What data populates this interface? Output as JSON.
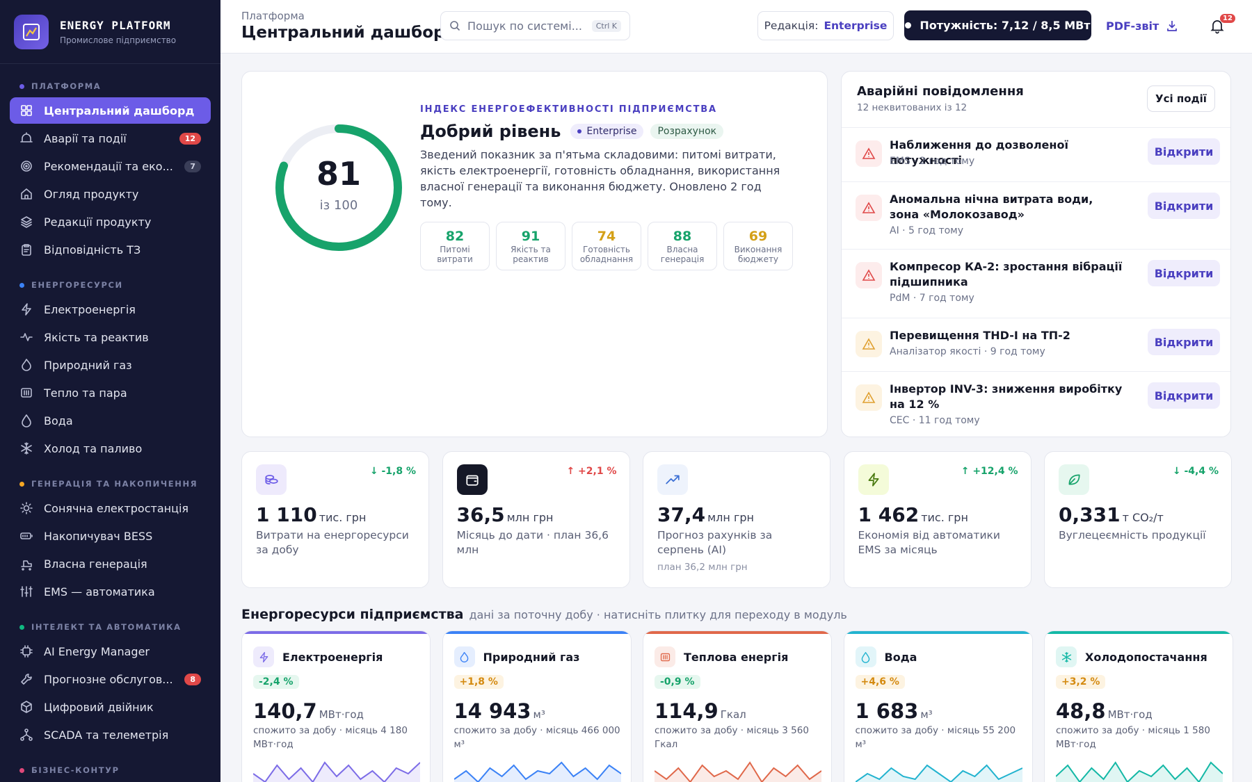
{
  "brand": {
    "name": "ENERGY PLATFORM",
    "subtitle": "Промислове підприємство"
  },
  "sidebar": [
    {
      "section": "ПЛАТФОРМА",
      "color": "#6c5ce7",
      "items": [
        {
          "label": "Центральний дашборд",
          "icon": "grid-icon",
          "active": true
        },
        {
          "label": "Аварії та події",
          "icon": "alert-icon",
          "badge": "12",
          "badge_kind": "red"
        },
        {
          "label": "Рекомендації та еко...",
          "icon": "target-icon",
          "badge": "7",
          "badge_kind": "grey"
        },
        {
          "label": "Огляд продукту",
          "icon": "home-icon"
        },
        {
          "label": "Редакції продукту",
          "icon": "layers-icon"
        },
        {
          "label": "Відповідність ТЗ",
          "icon": "clipboard-icon"
        }
      ]
    },
    {
      "section": "ЕНЕРГОРЕСУРСИ",
      "color": "#3b82f6",
      "items": [
        {
          "label": "Електроенергія",
          "icon": "bolt-icon"
        },
        {
          "label": "Якість та реактив",
          "icon": "pulse-icon"
        },
        {
          "label": "Природний газ",
          "icon": "flame-icon"
        },
        {
          "label": "Тепло та пара",
          "icon": "heater-icon"
        },
        {
          "label": "Вода",
          "icon": "drop-icon"
        },
        {
          "label": "Холод та паливо",
          "icon": "snowflake-icon"
        }
      ]
    },
    {
      "section": "ГЕНЕРАЦІЯ ТА НАКОПИЧЕННЯ",
      "color": "#f5a623",
      "items": [
        {
          "label": "Сонячна електростанція",
          "icon": "sun-icon"
        },
        {
          "label": "Накопичувач BESS",
          "icon": "battery-icon"
        },
        {
          "label": "Власна генерація",
          "icon": "generator-icon"
        },
        {
          "label": "EMS — автоматика",
          "icon": "sliders-icon"
        }
      ]
    },
    {
      "section": "ІНТЕЛЕКТ ТА АВТОМАТИКА",
      "color": "#10b981",
      "items": [
        {
          "label": "AI Energy Manager",
          "icon": "chip-icon"
        },
        {
          "label": "Прогнозне обслугов...",
          "icon": "wrench-icon",
          "badge": "8",
          "badge_kind": "red"
        },
        {
          "label": "Цифровий двійник",
          "icon": "cube-icon"
        },
        {
          "label": "SCADA та телеметрія",
          "icon": "network-icon"
        }
      ]
    },
    {
      "section": "БІЗНЕС-КОНТУР",
      "color": "#e0487a",
      "items": []
    }
  ],
  "header": {
    "breadcrumb": "Платформа",
    "title": "Центральний дашборд",
    "search_placeholder": "Пошук по системі...",
    "search_shortcut": "Ctrl K",
    "edition_label": "Редакція:",
    "edition_value": "Enterprise",
    "power_label": "Потужність:",
    "power_value": "7,12 / 8,5 МВт",
    "pdf_label": "PDF-звіт",
    "notifications": "12"
  },
  "efficiency": {
    "overline": "ІНДЕКС ЕНЕРГОЕФЕКТИВНОСТІ ПІДПРИЄМСТВА",
    "title": "Добрий рівень",
    "tag1": "Enterprise",
    "tag2": "Розрахунок",
    "score": "81",
    "of": "із 100",
    "score_value": 81,
    "description": "Зведений показник за п'ятьма складовими: питомі витрати, якість електроенергії, готовність обладнання, використання власної генерації та виконання бюджету. Оновлено 2 год тому.",
    "components": [
      {
        "value": "82",
        "label": "Питомі витрати",
        "color": "#17a36b"
      },
      {
        "value": "91",
        "label": "Якість та реактив",
        "color": "#17a36b"
      },
      {
        "value": "74",
        "label": "Готовність обладнання",
        "color": "#d4a017"
      },
      {
        "value": "88",
        "label": "Власна генерація",
        "color": "#17a36b"
      },
      {
        "value": "69",
        "label": "Виконання бюджету",
        "color": "#d4a017"
      }
    ]
  },
  "alerts": {
    "title": "Аварійні повідомлення",
    "subtitle": "12 неквитованих із 12",
    "all_button": "Усі події",
    "open_label": "Відкрити",
    "items": [
      {
        "title": "Наближення до дозволеної потужності",
        "meta": "EMS · 2 год тому",
        "level": "critical"
      },
      {
        "title": "Аномальна нічна витрата води, зона «Молокозавод»",
        "meta": "AI · 5 год тому",
        "level": "critical"
      },
      {
        "title": "Компресор КА-2: зростання вібрації підшипника",
        "meta": "PdM · 7 год тому",
        "level": "critical"
      },
      {
        "title": "Перевищення THD-I на ТП-2",
        "meta": "Аналізатор якості · 9 год тому",
        "level": "warning"
      },
      {
        "title": "Інвертор INV-3: зниження виробітку на 12 %",
        "meta": "CEC · 11 год тому",
        "level": "warning"
      }
    ]
  },
  "kpis": [
    {
      "icon": "coins-icon",
      "trend": "↓ -1,8 %",
      "trend_color": "#17a36b",
      "value": "1 110",
      "unit": "тис. грн",
      "label": "Витрати на енергоресурси за добу",
      "plan": ""
    },
    {
      "icon": "wallet-icon",
      "trend": "↑ +2,1 %",
      "trend_color": "#e04848",
      "value": "36,5",
      "unit": "млн грн",
      "label": "Місяць до дати · план 36,6 млн",
      "plan": ""
    },
    {
      "icon": "trend-icon",
      "trend": "",
      "trend_color": "#17a36b",
      "value": "37,4",
      "unit": "млн грн",
      "label": "Прогноз рахунків за серпень (AI)",
      "plan": "план 36,2 млн грн"
    },
    {
      "icon": "bolt-icon",
      "trend": "↑ +12,4 %",
      "trend_color": "#17a36b",
      "value": "1 462",
      "unit": "тис. грн",
      "label": "Економія від автоматики EMS за місяць",
      "plan": ""
    },
    {
      "icon": "leaf-icon",
      "trend": "↓ -4,4 %",
      "trend_color": "#17a36b",
      "value": "0,331",
      "unit": "т CO₂/т",
      "label": "Вуглецеємність продукції",
      "plan": ""
    }
  ],
  "resources_section": {
    "title": "Енергоресурси підприємства",
    "subtitle": "дані за поточну добу · натисніть плитку для переходу в модуль"
  },
  "resources": [
    {
      "name": "Електроенергія",
      "icon": "bolt-icon",
      "color": "#7c6ce7",
      "change": "-2,4 %",
      "change_kind": "good",
      "value": "140,7",
      "unit": "МВт·год",
      "desc": "спожито за добу · місяць 4 180 МВт·год",
      "spark": [
        5,
        2,
        8,
        3,
        7,
        2,
        9,
        4,
        8,
        3,
        6,
        2,
        7,
        5,
        9
      ]
    },
    {
      "name": "Природний газ",
      "icon": "flame-icon",
      "color": "#3b82f6",
      "change": "+1,8 %",
      "change_kind": "warn",
      "value": "14 943",
      "unit": "м³",
      "desc": "спожито за добу · місяць 466 000 м³",
      "spark": [
        3,
        6,
        2,
        7,
        4,
        8,
        3,
        6,
        5,
        9,
        4,
        7,
        3,
        8,
        5
      ]
    },
    {
      "name": "Теплова енергія",
      "icon": "heater-icon",
      "color": "#e0684a",
      "change": "-0,9 %",
      "change_kind": "good",
      "value": "114,9",
      "unit": "Гкал",
      "desc": "спожито за добу · місяць 3 560 Гкал",
      "spark": [
        6,
        3,
        7,
        2,
        8,
        4,
        6,
        3,
        9,
        2,
        7,
        4,
        8,
        3,
        6
      ]
    },
    {
      "name": "Вода",
      "icon": "drop-icon",
      "color": "#22b3cf",
      "change": "+4,6 %",
      "change_kind": "warn",
      "value": "1 683",
      "unit": "м³",
      "desc": "спожито за добу · місяць 55 200 м³",
      "spark": [
        2,
        5,
        3,
        7,
        4,
        3,
        8,
        5,
        2,
        6,
        4,
        8,
        3,
        5,
        7
      ]
    },
    {
      "name": "Холодопостачання",
      "icon": "snowflake-icon",
      "color": "#14b8a6",
      "change": "+3,2 %",
      "change_kind": "warn",
      "value": "48,8",
      "unit": "МВт·год",
      "desc": "спожито за добу · місяць 1 580 МВт·год",
      "spark": [
        4,
        8,
        2,
        7,
        3,
        9,
        2,
        6,
        4,
        8,
        3,
        7,
        2,
        9,
        5
      ]
    }
  ]
}
